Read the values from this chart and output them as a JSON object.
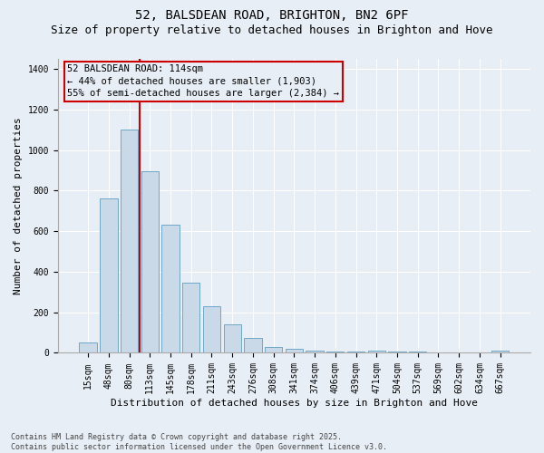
{
  "title": "52, BALSDEAN ROAD, BRIGHTON, BN2 6PF",
  "subtitle": "Size of property relative to detached houses in Brighton and Hove",
  "xlabel": "Distribution of detached houses by size in Brighton and Hove",
  "ylabel": "Number of detached properties",
  "categories": [
    "15sqm",
    "48sqm",
    "80sqm",
    "113sqm",
    "145sqm",
    "178sqm",
    "211sqm",
    "243sqm",
    "276sqm",
    "308sqm",
    "341sqm",
    "374sqm",
    "406sqm",
    "439sqm",
    "471sqm",
    "504sqm",
    "537sqm",
    "569sqm",
    "602sqm",
    "634sqm",
    "667sqm"
  ],
  "bar_values": [
    50,
    760,
    1100,
    895,
    630,
    345,
    230,
    140,
    75,
    30,
    18,
    10,
    5,
    5,
    12,
    5,
    5,
    3,
    3,
    2,
    12
  ],
  "bar_color": "#c9d9e8",
  "bar_edge_color": "#6fa8c8",
  "vline_position": 2.5,
  "vline_color": "#cc0000",
  "annotation_text": "52 BALSDEAN ROAD: 114sqm\n← 44% of detached houses are smaller (1,903)\n55% of semi-detached houses are larger (2,384) →",
  "ylim": [
    0,
    1450
  ],
  "yticks": [
    0,
    200,
    400,
    600,
    800,
    1000,
    1200,
    1400
  ],
  "background_color": "#e8eef5",
  "grid_color": "#ffffff",
  "footer": "Contains HM Land Registry data © Crown copyright and database right 2025.\nContains public sector information licensed under the Open Government Licence v3.0.",
  "title_fontsize": 10,
  "subtitle_fontsize": 9,
  "ylabel_fontsize": 8,
  "xlabel_fontsize": 8,
  "tick_fontsize": 7,
  "footer_fontsize": 6,
  "annot_fontsize": 7.5
}
